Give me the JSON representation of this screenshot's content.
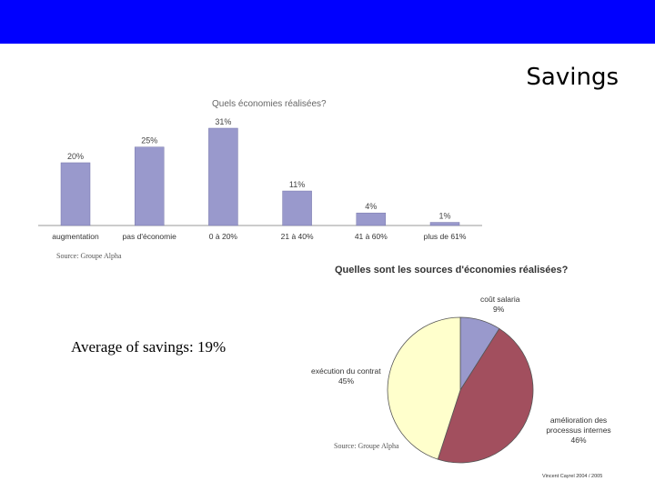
{
  "slide": {
    "title": "Savings",
    "average_text": "Average of savings: 19%",
    "copyright": "Vincent Cayrel 2004 / 2005"
  },
  "colors": {
    "top_bar": "#0000ff",
    "bar_fill": "#9999cc",
    "pie_cout_salarial": "#9999cc",
    "pie_amelioration": "#a24f5e",
    "pie_execution": "#ffffcc"
  },
  "chart_data": [
    {
      "type": "bar",
      "title": "Quels économies réalisées?",
      "categories": [
        "augmentation",
        "pas d'économie",
        "0 à 20%",
        "21 à 40%",
        "41 à 60%",
        "plus de 61%"
      ],
      "values": [
        20,
        25,
        31,
        11,
        4,
        1
      ],
      "data_labels": [
        "20%",
        "25%",
        "31%",
        "11%",
        "4%",
        "1%"
      ],
      "ylim": [
        0,
        31
      ],
      "grid": false,
      "source": "Source: Groupe Alpha"
    },
    {
      "type": "pie",
      "title": "Quelles sont les sources d'économies réalisées?",
      "slices": [
        {
          "label": "coût salaria",
          "value": 9,
          "value_label": "9%"
        },
        {
          "label": "amélioration des processus internes",
          "value": 46,
          "value_label": "46%"
        },
        {
          "label": "exécution du contrat",
          "value": 45,
          "value_label": "45%"
        }
      ],
      "source": "Source: Groupe Alpha"
    }
  ]
}
